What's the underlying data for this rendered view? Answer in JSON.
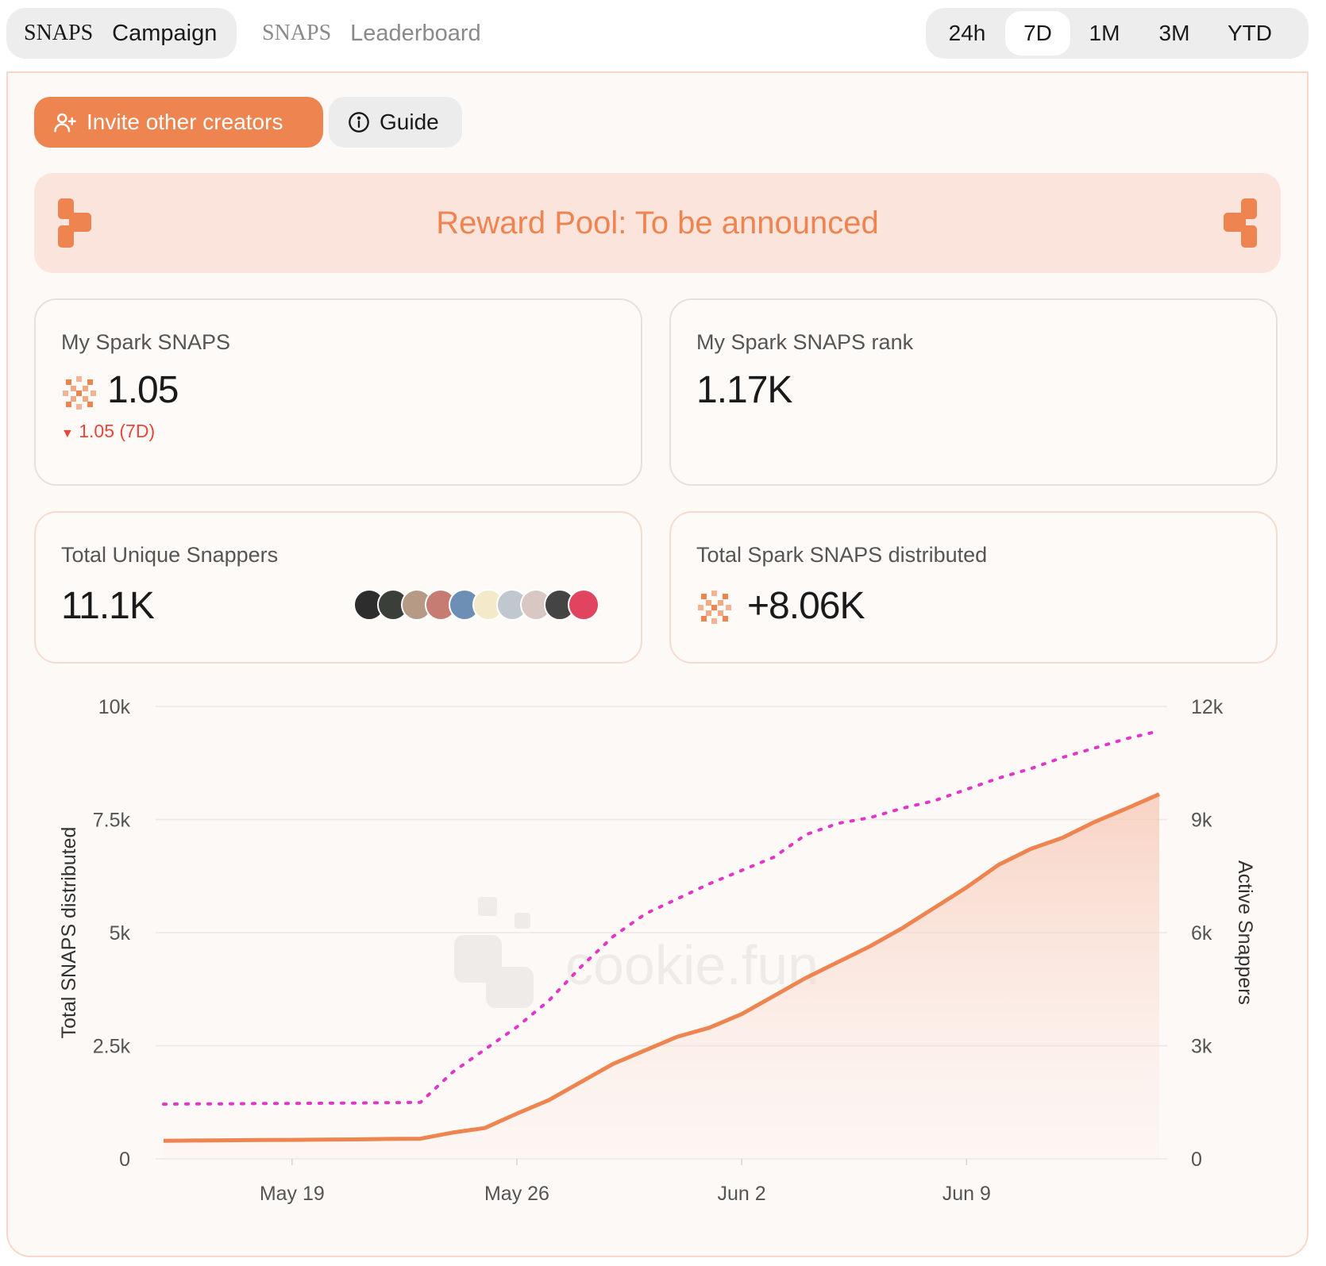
{
  "topbar": {
    "tabs": [
      {
        "brand": "SNAPS",
        "label": "Campaign",
        "active": true
      },
      {
        "brand": "SNAPS",
        "label": "Leaderboard",
        "active": false
      }
    ],
    "ranges": [
      "24h",
      "7D",
      "1M",
      "3M",
      "YTD"
    ],
    "active_range": "7D"
  },
  "actions": {
    "invite_label": "Invite other creators",
    "guide_label": "Guide"
  },
  "reward": {
    "text": "Reward Pool: To be announced"
  },
  "cards": {
    "my_snaps": {
      "label": "My Spark SNAPS",
      "value": "1.05",
      "delta": "1.05 (7D)"
    },
    "my_rank": {
      "label": "My Spark SNAPS rank",
      "value": "1.17K"
    },
    "unique_snappers": {
      "label": "Total Unique Snappers",
      "value": "11.1K"
    },
    "distributed": {
      "label": "Total Spark SNAPS distributed",
      "value": "+8.06K"
    }
  },
  "avatar_colors": [
    "#2d2d2d",
    "#3b3f3a",
    "#b79a86",
    "#c77c73",
    "#6d8fb5",
    "#f4e9c8",
    "#bfc7cf",
    "#d8c7c2",
    "#444444",
    "#e0445f"
  ],
  "colors": {
    "accent": "#ee844f",
    "dotted": "#e236c8",
    "negative": "#e9473a"
  },
  "watermark": "cookie.fun",
  "chart_data": {
    "type": "line",
    "xlabel": "",
    "ylabel": "Total SNAPS distributed",
    "y2label": "Active Snappers",
    "x_ticks": [
      "May 19",
      "May 26",
      "Jun 2",
      "Jun 9"
    ],
    "y_ticks": [
      "0",
      "2.5k",
      "5k",
      "7.5k",
      "10k"
    ],
    "y2_ticks": [
      "0",
      "3k",
      "6k",
      "9k",
      "12k"
    ],
    "ylim": [
      0,
      10000
    ],
    "y2lim": [
      0,
      12000
    ],
    "x": [
      "May 15",
      "May 16",
      "May 17",
      "May 18",
      "May 19",
      "May 20",
      "May 21",
      "May 22",
      "May 23",
      "May 24",
      "May 25",
      "May 26",
      "May 27",
      "May 28",
      "May 29",
      "May 30",
      "May 31",
      "Jun 1",
      "Jun 2",
      "Jun 3",
      "Jun 4",
      "Jun 5",
      "Jun 6",
      "Jun 7",
      "Jun 8",
      "Jun 9",
      "Jun 10",
      "Jun 11",
      "Jun 12",
      "Jun 13",
      "Jun 14",
      "Jun 15"
    ],
    "series": [
      {
        "name": "Total SNAPS distributed",
        "axis": "left",
        "style": "solid-area",
        "values": [
          400,
          405,
          410,
          415,
          420,
          425,
          430,
          440,
          445,
          580,
          680,
          1000,
          1300,
          1700,
          2100,
          2400,
          2700,
          2900,
          3200,
          3600,
          4000,
          4350,
          4700,
          5100,
          5550,
          6000,
          6500,
          6850,
          7100,
          7450,
          7750,
          8060
        ]
      },
      {
        "name": "Active Snappers",
        "axis": "right",
        "style": "dotted",
        "values": [
          1450,
          1460,
          1460,
          1470,
          1470,
          1475,
          1480,
          1490,
          1500,
          2300,
          2900,
          3500,
          4200,
          5100,
          5900,
          6500,
          6900,
          7300,
          7650,
          8000,
          8600,
          8900,
          9050,
          9300,
          9500,
          9800,
          10100,
          10350,
          10650,
          10900,
          11150,
          11350
        ]
      }
    ]
  }
}
